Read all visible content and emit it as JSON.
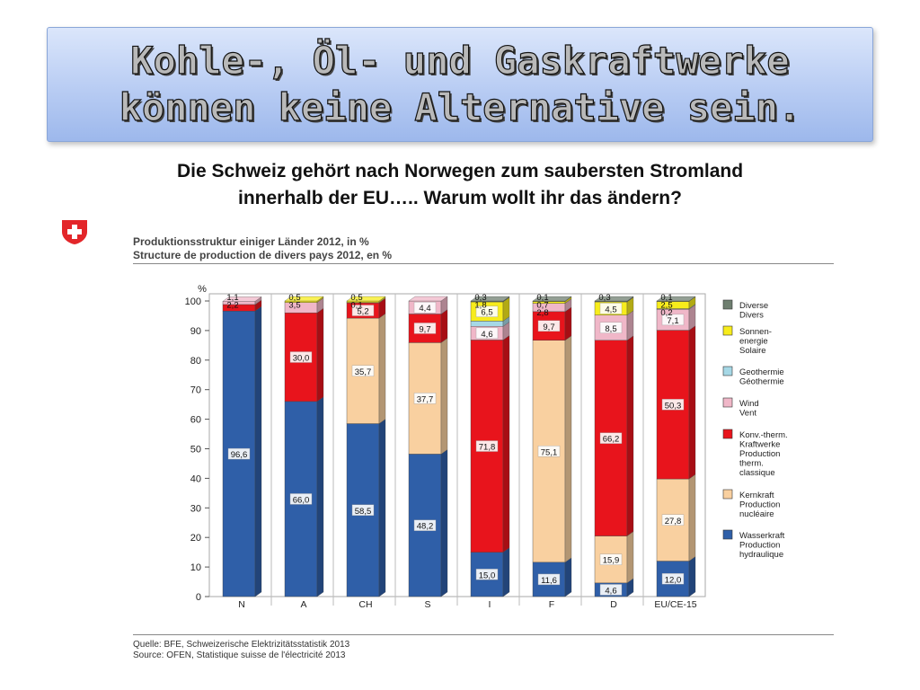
{
  "slide": {
    "title_line1": "Kohle-, Öl-  und Gaskraftwerke",
    "title_line2": "können keine Alternative sein.",
    "subtitle_line1": "Die Schweiz gehört nach Norwegen zum saubersten Stromland",
    "subtitle_line2": "innerhalb der EU….. Warum wollt ihr das ändern?",
    "source_line1": "Quelle: BFE, Schweizerische Elektrizitätsstatistik 2013",
    "source_line2": "Source: OFEN, Statistique suisse de l'électricité 2013"
  },
  "colors": {
    "flag_red": "#e3262a",
    "Wasserkraft": "#2f5fa8",
    "Kernkraft": "#f9d0a0",
    "Konv": "#e8141c",
    "Wind": "#f0b7c8",
    "Geothermie": "#a6d8e6",
    "Sonnenenergie": "#f7ec1c",
    "Diverse": "#6f7f70"
  },
  "chart_data": {
    "type": "bar",
    "stacked": true,
    "title_line1": "Produktionsstruktur einiger Länder 2012, in %",
    "title_line2": "Structure de production de divers pays 2012, en %",
    "ylabel": "%",
    "ylim": [
      0,
      100
    ],
    "yticks": [
      0,
      10,
      20,
      30,
      40,
      50,
      60,
      70,
      80,
      90,
      100
    ],
    "legend_position": "right",
    "categories": [
      "N",
      "A",
      "CH",
      "S",
      "I",
      "F",
      "D",
      "EU/CE-15"
    ],
    "series": [
      {
        "key": "Wasserkraft",
        "name_de": "Wasserkraft",
        "name_fr1": "Production",
        "name_fr2": "hydraulique",
        "values": [
          96.6,
          66.0,
          58.5,
          48.2,
          15.0,
          11.6,
          4.6,
          12.0
        ],
        "labels": [
          "96,6",
          "66,0",
          "58,5",
          "48,2",
          "15,0",
          "11,6",
          "4,6",
          "12,0"
        ]
      },
      {
        "key": "Kernkraft",
        "name_de": "Kernkraft",
        "name_fr1": "Production",
        "name_fr2": "nucléaire",
        "values": [
          0,
          0,
          35.7,
          37.7,
          0,
          75.1,
          15.9,
          27.8
        ],
        "labels": [
          "",
          "",
          "35,7",
          "37,7",
          "",
          "75,1",
          "15,9",
          "27,8"
        ]
      },
      {
        "key": "Konv",
        "name_de": "Konv.-therm.",
        "name_de2": "Kraftwerke",
        "name_fr1": "Production",
        "name_fr2": "therm.",
        "name_fr3": "classique",
        "values": [
          2.2,
          30.0,
          5.2,
          9.7,
          71.8,
          9.7,
          66.2,
          50.3
        ],
        "labels": [
          "2,2",
          "30,0",
          "5,2",
          "9,7",
          "71,8",
          "9,7",
          "66,2",
          "50,3"
        ]
      },
      {
        "key": "Wind",
        "name_de": "Wind",
        "name_fr1": "Vent",
        "values": [
          1.1,
          3.5,
          0.1,
          4.4,
          4.6,
          2.8,
          8.5,
          7.1
        ],
        "labels": [
          "1,1",
          "3,5",
          "0,1",
          "4,4",
          "4,6",
          "2,8",
          "8,5",
          "7,1"
        ]
      },
      {
        "key": "Geothermie",
        "name_de": "Geothermie",
        "name_fr1": "Géothermie",
        "values": [
          0,
          0,
          0,
          0,
          1.8,
          0,
          0,
          0.2
        ],
        "labels": [
          "",
          "",
          "",
          "",
          "1,8",
          "",
          "",
          "0,2"
        ]
      },
      {
        "key": "Sonnenenergie",
        "name_de": "Sonnen-",
        "name_de2": "energie",
        "name_fr1": "Solaire",
        "values": [
          0,
          0.5,
          0.5,
          0,
          6.5,
          0.7,
          4.5,
          2.5
        ],
        "labels": [
          "",
          "0,5",
          "0,5",
          "",
          "6,5",
          "0,7",
          "4,5",
          "2,5"
        ]
      },
      {
        "key": "Diverse",
        "name_de": "Diverse",
        "name_fr1": "Divers",
        "values": [
          0,
          0,
          0,
          0,
          0.3,
          0.1,
          0.3,
          0.1
        ],
        "labels": [
          "",
          "",
          "",
          "",
          "0,3",
          "0,1",
          "0,3",
          "0,1"
        ]
      }
    ]
  }
}
